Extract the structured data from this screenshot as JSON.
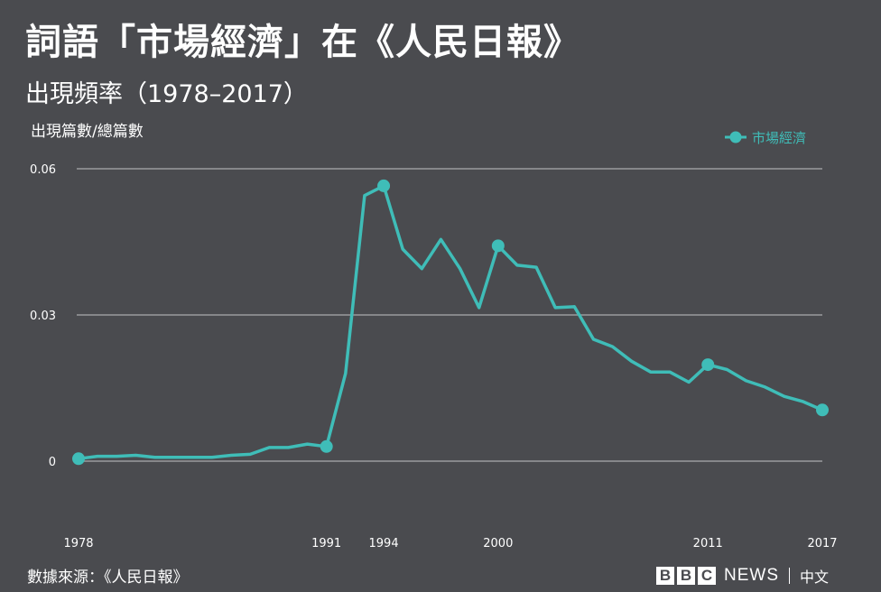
{
  "title": "詞語「市場經濟」在《人民日報》",
  "subtitle": "出現頻率（1978–2017）",
  "source": "數據來源：《人民日報》",
  "logo": {
    "letters": [
      "B",
      "B",
      "C"
    ],
    "news": "NEWS",
    "lang": "中文"
  },
  "colors": {
    "background": "#4a4b4f",
    "line": "#3fbdb8",
    "grid": "#9a9b9e",
    "text": "#ffffff"
  },
  "chart_data": {
    "type": "line",
    "title": "詞語「市場經濟」在《人民日報》",
    "subtitle": "出現頻率（1978–2017）",
    "ylabel": "出現篇數/總篇數",
    "xlabel": "",
    "ylim": [
      0,
      0.06
    ],
    "xlim": [
      1978,
      2017
    ],
    "yticks": [
      0,
      0.03,
      0.06
    ],
    "ytick_labels": [
      "0",
      "0.03",
      "0.06"
    ],
    "xticks": [
      1978,
      1991,
      1994,
      2000,
      2011,
      2017
    ],
    "grid": "horizontal",
    "legend": "top-right",
    "series": [
      {
        "name": "市場經濟",
        "x": [
          1978,
          1979,
          1980,
          1981,
          1982,
          1983,
          1984,
          1985,
          1986,
          1987,
          1988,
          1989,
          1990,
          1991,
          1992,
          1993,
          1994,
          1995,
          1996,
          1997,
          1998,
          1999,
          2000,
          2001,
          2002,
          2003,
          2004,
          2005,
          2006,
          2007,
          2008,
          2009,
          2010,
          2011,
          2012,
          2013,
          2014,
          2015,
          2016,
          2017
        ],
        "y": [
          0.0005,
          0.001,
          0.001,
          0.0012,
          0.0008,
          0.0008,
          0.0008,
          0.0008,
          0.0012,
          0.0014,
          0.0028,
          0.0028,
          0.0035,
          0.003,
          0.018,
          0.0545,
          0.0565,
          0.0435,
          0.0395,
          0.0455,
          0.0395,
          0.0315,
          0.0442,
          0.0402,
          0.0398,
          0.0315,
          0.0317,
          0.025,
          0.0235,
          0.0205,
          0.0183,
          0.0183,
          0.0162,
          0.0198,
          0.0188,
          0.0165,
          0.0152,
          0.0133,
          0.0122,
          0.0105
        ],
        "markers": [
          1978,
          1991,
          1994,
          2000,
          2011,
          2017
        ]
      }
    ]
  }
}
